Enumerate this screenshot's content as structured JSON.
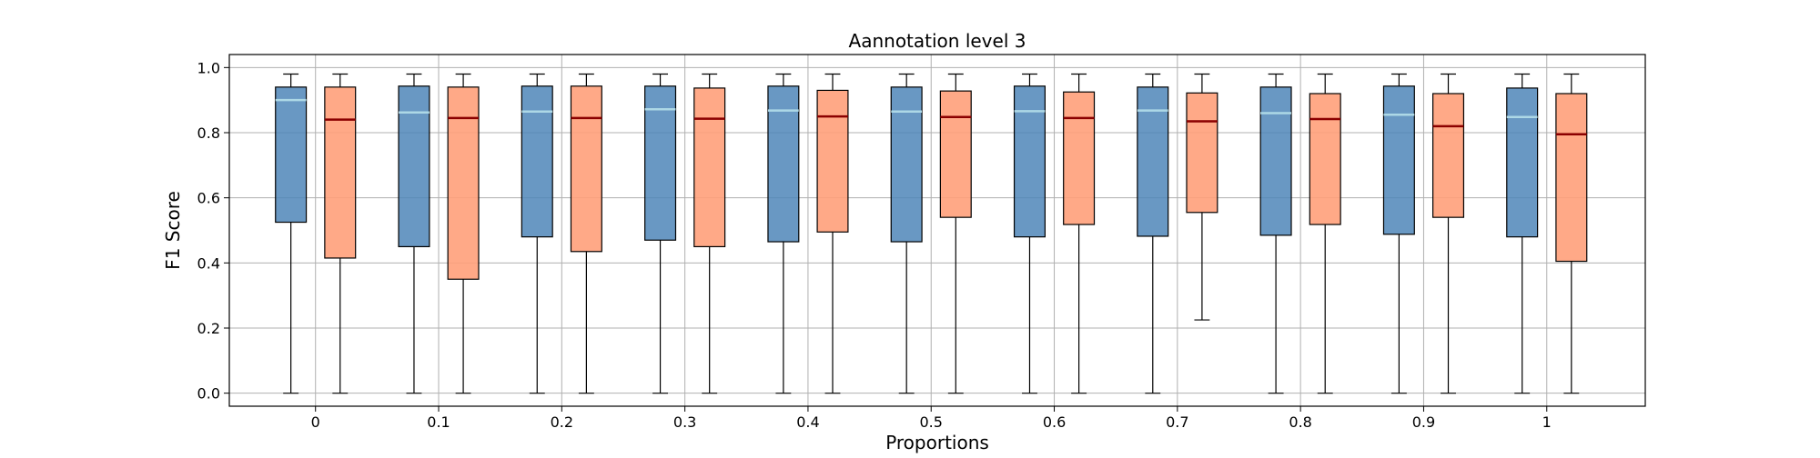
{
  "chart_data": {
    "type": "box",
    "title": "Aannotation level 3",
    "xlabel": "Proportions",
    "ylabel": "F1 Score",
    "categories": [
      "0",
      "0.1",
      "0.2",
      "0.3",
      "0.4",
      "0.5",
      "0.6",
      "0.7",
      "0.8",
      "0.9",
      "1"
    ],
    "ylim": [
      -0.04,
      1.04
    ],
    "yticks": [
      "0.0",
      "0.2",
      "0.4",
      "0.6",
      "0.8",
      "1.0"
    ],
    "grid": true,
    "series": [
      {
        "color": "#4f86b9",
        "median_color": "#add8e6",
        "boxes": [
          {
            "min": 0.0,
            "q1": 0.525,
            "median": 0.9,
            "q3": 0.94,
            "max": 0.98
          },
          {
            "min": 0.0,
            "q1": 0.45,
            "median": 0.862,
            "q3": 0.943,
            "max": 0.98
          },
          {
            "min": 0.0,
            "q1": 0.48,
            "median": 0.865,
            "q3": 0.943,
            "max": 0.98
          },
          {
            "min": 0.0,
            "q1": 0.47,
            "median": 0.872,
            "q3": 0.943,
            "max": 0.98
          },
          {
            "min": 0.0,
            "q1": 0.465,
            "median": 0.868,
            "q3": 0.943,
            "max": 0.98
          },
          {
            "min": 0.0,
            "q1": 0.465,
            "median": 0.865,
            "q3": 0.94,
            "max": 0.98
          },
          {
            "min": 0.0,
            "q1": 0.48,
            "median": 0.866,
            "q3": 0.943,
            "max": 0.98
          },
          {
            "min": 0.0,
            "q1": 0.482,
            "median": 0.868,
            "q3": 0.94,
            "max": 0.98
          },
          {
            "min": 0.0,
            "q1": 0.485,
            "median": 0.86,
            "q3": 0.94,
            "max": 0.98
          },
          {
            "min": 0.0,
            "q1": 0.488,
            "median": 0.855,
            "q3": 0.943,
            "max": 0.98
          },
          {
            "min": 0.0,
            "q1": 0.48,
            "median": 0.848,
            "q3": 0.937,
            "max": 0.98
          }
        ]
      },
      {
        "color": "#ffa07a",
        "median_color": "#8b0000",
        "boxes": [
          {
            "min": 0.0,
            "q1": 0.415,
            "median": 0.84,
            "q3": 0.94,
            "max": 0.98
          },
          {
            "min": 0.0,
            "q1": 0.35,
            "median": 0.845,
            "q3": 0.94,
            "max": 0.98
          },
          {
            "min": 0.0,
            "q1": 0.435,
            "median": 0.845,
            "q3": 0.943,
            "max": 0.98
          },
          {
            "min": 0.0,
            "q1": 0.45,
            "median": 0.843,
            "q3": 0.937,
            "max": 0.98
          },
          {
            "min": 0.0,
            "q1": 0.495,
            "median": 0.85,
            "q3": 0.93,
            "max": 0.98
          },
          {
            "min": 0.0,
            "q1": 0.54,
            "median": 0.848,
            "q3": 0.928,
            "max": 0.98
          },
          {
            "min": 0.0,
            "q1": 0.518,
            "median": 0.845,
            "q3": 0.925,
            "max": 0.98
          },
          {
            "min": 0.225,
            "q1": 0.555,
            "median": 0.835,
            "q3": 0.922,
            "max": 0.98
          },
          {
            "min": 0.0,
            "q1": 0.518,
            "median": 0.842,
            "q3": 0.92,
            "max": 0.98
          },
          {
            "min": 0.0,
            "q1": 0.54,
            "median": 0.82,
            "q3": 0.92,
            "max": 0.98
          },
          {
            "min": 0.0,
            "q1": 0.405,
            "median": 0.795,
            "q3": 0.92,
            "max": 0.98
          }
        ]
      }
    ]
  }
}
